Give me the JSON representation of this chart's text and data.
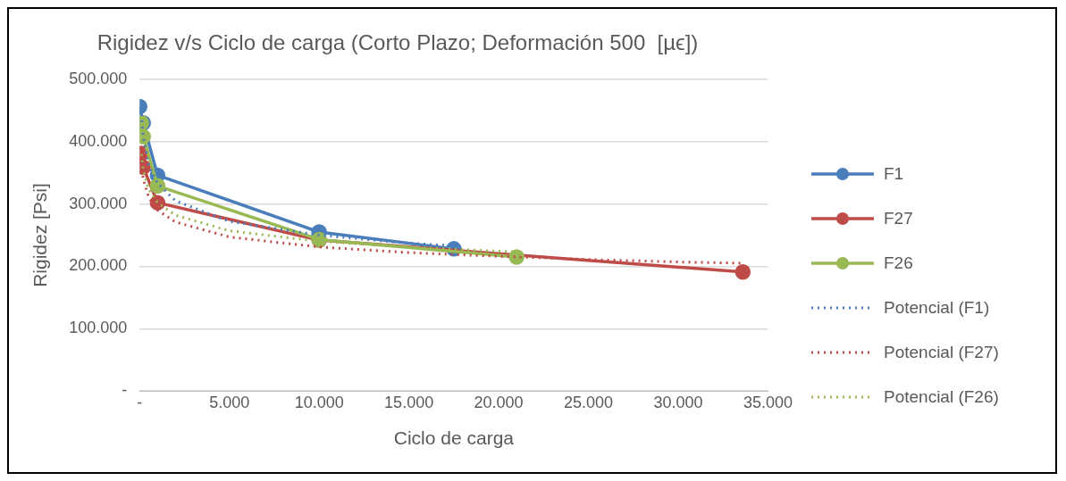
{
  "chart_data": {
    "type": "line",
    "title": "Rigidez v/s Ciclo de carga (Corto Plazo; Deformación 500  [µϵ])",
    "xlabel": "Ciclo de carga",
    "ylabel": "Rigidez [Psi]",
    "xlim": [
      0,
      35000
    ],
    "xticks": [
      {
        "value": 0,
        "label": "-"
      },
      {
        "value": 5000,
        "label": "5.000"
      },
      {
        "value": 10000,
        "label": "10.000"
      },
      {
        "value": 15000,
        "label": "15.000"
      },
      {
        "value": 20000,
        "label": "20.000"
      },
      {
        "value": 25000,
        "label": "25.000"
      },
      {
        "value": 30000,
        "label": "30.000"
      },
      {
        "value": 35000,
        "label": "35.000"
      }
    ],
    "ylim": [
      0,
      500000
    ],
    "yticks": [
      {
        "value": 0,
        "label": "-"
      },
      {
        "value": 100000,
        "label": "100.000"
      },
      {
        "value": 200000,
        "label": "200.000"
      },
      {
        "value": 300000,
        "label": "300.000"
      },
      {
        "value": 400000,
        "label": "400.000"
      },
      {
        "value": 500000,
        "label": "500.000"
      }
    ],
    "grid": "y",
    "legend": "right",
    "marker": "circle",
    "line_style": "solid",
    "series": [
      {
        "name": "F1",
        "color": "#4a7ebb",
        "x": [
          0,
          200,
          1000,
          10000,
          17500
        ],
        "values": [
          456000,
          430000,
          346000,
          255000,
          228000
        ]
      },
      {
        "name": "F27",
        "color": "#be4b48",
        "x": [
          100,
          200,
          1000,
          10000,
          33600
        ],
        "values": [
          381000,
          359000,
          302000,
          242000,
          191000
        ]
      },
      {
        "name": "F26",
        "color": "#98b954",
        "x": [
          100,
          200,
          1000,
          10000,
          21000
        ],
        "values": [
          430000,
          408000,
          329000,
          243000,
          215000
        ]
      },
      {
        "name": "Potencial (F1)",
        "color": "#4a7ebb",
        "marker": "none",
        "line_style": "dotted",
        "x": [
          100,
          200,
          500,
          1000,
          2000,
          5000,
          10000,
          15000,
          17500
        ],
        "values": [
          444000,
          408000,
          363000,
          333000,
          305000,
          272000,
          250000,
          237000,
          233000
        ]
      },
      {
        "name": "Potencial (F27)",
        "color": "#be4b48",
        "marker": "none",
        "line_style": "dotted",
        "x": [
          100,
          200,
          500,
          1000,
          2000,
          5000,
          10000,
          15000,
          20000,
          25000,
          30000,
          33600
        ],
        "values": [
          365000,
          340000,
          311000,
          290000,
          271000,
          247000,
          231000,
          222000,
          216000,
          211000,
          207000,
          205000
        ]
      },
      {
        "name": "Potencial (F26)",
        "color": "#98b954",
        "marker": "none",
        "line_style": "dotted",
        "x": [
          100,
          200,
          500,
          1000,
          2000,
          5000,
          10000,
          15000,
          21000
        ],
        "values": [
          380000,
          355000,
          324000,
          302000,
          282000,
          257000,
          240000,
          231000,
          223000
        ]
      }
    ]
  }
}
